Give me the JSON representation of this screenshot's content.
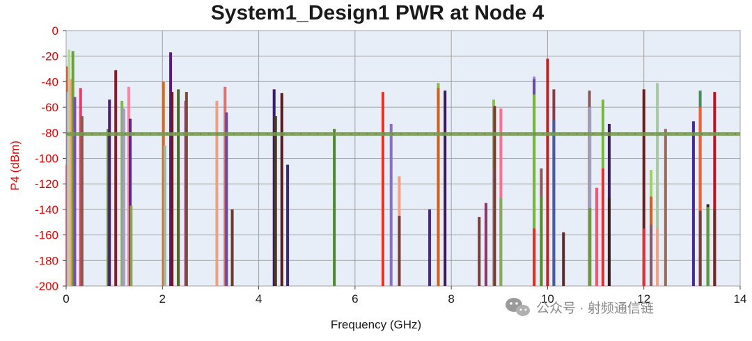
{
  "chart_data": {
    "type": "bar",
    "title": "System1_Design1 PWR at Node 4",
    "xlabel": "Frequency (GHz)",
    "ylabel": "P4 (dBm)",
    "xlim": [
      0,
      14
    ],
    "ylim": [
      -200,
      0
    ],
    "x_ticks": [
      "0",
      "2",
      "4",
      "6",
      "8",
      "10",
      "12",
      "14"
    ],
    "y_ticks": [
      "0",
      "-20",
      "-40",
      "-60",
      "-80",
      "-100",
      "-120",
      "-140",
      "-160",
      "-180",
      "-200"
    ],
    "grid": true,
    "background": "#e8eef8",
    "noise_floor": {
      "value": -81,
      "color": "#7a9a55"
    },
    "watermark": "公众号 · 射频通信链",
    "series": [
      {
        "color": "#b52020",
        "x": [
          0.02
        ],
        "y": [
          -105
        ]
      },
      {
        "color": "#ea4b22",
        "x": [
          0.03
        ],
        "y": [
          -28
        ]
      },
      {
        "color": "#bda9d8",
        "x": [
          0.04
        ],
        "y": [
          -48
        ]
      },
      {
        "color": "#b5d99a",
        "x": [
          0.06
        ],
        "y": [
          -15
        ]
      },
      {
        "color": "#f5a37a",
        "x": [
          0.1
        ],
        "y": [
          -38
        ]
      },
      {
        "color": "#6aa23a",
        "x": [
          0.14
        ],
        "y": [
          -16
        ]
      },
      {
        "color": "#7b4ea8",
        "x": [
          0.18
        ],
        "y": [
          -52
        ]
      },
      {
        "color": "#e8386a",
        "x": [
          0.3
        ],
        "y": [
          -45
        ]
      },
      {
        "color": "#8a5a48",
        "x": [
          0.33
        ],
        "y": [
          -67
        ]
      },
      {
        "color": "#5a8a2a",
        "x": [
          0.87
        ],
        "y": [
          -77
        ]
      },
      {
        "color": "#4e1e6e",
        "x": [
          0.9
        ],
        "y": [
          -54
        ]
      },
      {
        "color": "#8a1a2a",
        "x": [
          1.03
        ],
        "y": [
          -31
        ]
      },
      {
        "color": "#7ab84a",
        "x": [
          1.16
        ],
        "y": [
          -55
        ]
      },
      {
        "color": "#b09ac8",
        "x": [
          1.2
        ],
        "y": [
          -61
        ]
      },
      {
        "color": "#ff80a0",
        "x": [
          1.3
        ],
        "y": [
          -44
        ]
      },
      {
        "color": "#5a2a8a",
        "x": [
          1.33
        ],
        "y": [
          -69
        ]
      },
      {
        "color": "#88a848",
        "x": [
          1.35
        ],
        "y": [
          -137
        ]
      },
      {
        "color": "#d2691e",
        "x": [
          2.02
        ],
        "y": [
          -40
        ]
      },
      {
        "color": "#a0b8a0",
        "x": [
          2.05
        ],
        "y": [
          -90
        ]
      },
      {
        "color": "#5a1a8a",
        "x": [
          2.17
        ],
        "y": [
          -17
        ]
      },
      {
        "color": "#6a1a1a",
        "x": [
          2.2
        ],
        "y": [
          -48
        ]
      },
      {
        "color": "#e03020",
        "x": [
          2.33
        ],
        "y": [
          -133
        ]
      },
      {
        "color": "#4a6a2a",
        "x": [
          2.33
        ],
        "y": [
          -46
        ]
      },
      {
        "color": "#d040c0",
        "x": [
          2.48
        ],
        "y": [
          -55
        ]
      },
      {
        "color": "#7a4a3a",
        "x": [
          2.5
        ],
        "y": [
          -48
        ]
      },
      {
        "color": "#f0a080",
        "x": [
          3.13
        ],
        "y": [
          -55
        ]
      },
      {
        "color": "#e07070",
        "x": [
          3.3
        ],
        "y": [
          -44
        ]
      },
      {
        "color": "#8a8a2a",
        "x": [
          3.33
        ],
        "y": [
          -70
        ]
      },
      {
        "color": "#6a4a9a",
        "x": [
          3.33
        ],
        "y": [
          -64
        ]
      },
      {
        "color": "#6a3a2a",
        "x": [
          3.45
        ],
        "y": [
          -140
        ]
      },
      {
        "color": "#3a1a6a",
        "x": [
          4.32
        ],
        "y": [
          -46
        ]
      },
      {
        "color": "#4a3a1a",
        "x": [
          4.35
        ],
        "y": [
          -67
        ]
      },
      {
        "color": "#5a1a1a",
        "x": [
          4.48
        ],
        "y": [
          -49
        ]
      },
      {
        "color": "#3a2a7a",
        "x": [
          4.6
        ],
        "y": [
          -105
        ]
      },
      {
        "color": "#4a8a2a",
        "x": [
          5.57
        ],
        "y": [
          -77
        ]
      },
      {
        "color": "#ea3020",
        "x": [
          6.58
        ],
        "y": [
          -48
        ]
      },
      {
        "color": "#8a70c0",
        "x": [
          6.75
        ],
        "y": [
          -73
        ]
      },
      {
        "color": "#f5a080",
        "x": [
          6.92
        ],
        "y": [
          -114
        ]
      },
      {
        "color": "#7a3a3a",
        "x": [
          6.92
        ],
        "y": [
          -145
        ]
      },
      {
        "color": "#4a2a8a",
        "x": [
          7.55
        ],
        "y": [
          -140
        ]
      },
      {
        "color": "#8ab84a",
        "x": [
          7.73
        ],
        "y": [
          -41
        ]
      },
      {
        "color": "#d06020",
        "x": [
          7.73
        ],
        "y": [
          -45
        ]
      },
      {
        "color": "#3a1a5a",
        "x": [
          7.87
        ],
        "y": [
          -47
        ]
      },
      {
        "color": "#7a3a3a",
        "x": [
          8.58
        ],
        "y": [
          -146
        ]
      },
      {
        "color": "#4a8a3a",
        "x": [
          8.72
        ],
        "y": [
          -136
        ]
      },
      {
        "color": "#8a3a6a",
        "x": [
          8.72
        ],
        "y": [
          -135
        ]
      },
      {
        "color": "#90c050",
        "x": [
          8.88
        ],
        "y": [
          -54
        ]
      },
      {
        "color": "#b0a0c0",
        "x": [
          8.88
        ],
        "y": [
          -108
        ]
      },
      {
        "color": "#7a3a2a",
        "x": [
          8.9
        ],
        "y": [
          -59
        ]
      },
      {
        "color": "#ff7090",
        "x": [
          9.03
        ],
        "y": [
          -61
        ]
      },
      {
        "color": "#8aa85a",
        "x": [
          9.03
        ],
        "y": [
          -131
        ]
      },
      {
        "color": "#8a8ad0",
        "x": [
          9.72
        ],
        "y": [
          -36
        ]
      },
      {
        "color": "#6a4aa0",
        "x": [
          9.72
        ],
        "y": [
          -38
        ]
      },
      {
        "color": "#78b838",
        "x": [
          9.72
        ],
        "y": [
          -50
        ]
      },
      {
        "color": "#e03020",
        "x": [
          9.72
        ],
        "y": [
          -155
        ]
      },
      {
        "color": "#8a5a5a",
        "x": [
          9.87
        ],
        "y": [
          -108
        ]
      },
      {
        "color": "#5a8a2a",
        "x": [
          9.87
        ],
        "y": [
          -130
        ]
      },
      {
        "color": "#c02020",
        "x": [
          10.0
        ],
        "y": [
          -22
        ]
      },
      {
        "color": "#8a3a4a",
        "x": [
          10.13
        ],
        "y": [
          -46
        ]
      },
      {
        "color": "#4a5aa0",
        "x": [
          10.13
        ],
        "y": [
          -70
        ]
      },
      {
        "color": "#5a2a2a",
        "x": [
          10.33
        ],
        "y": [
          -158
        ]
      },
      {
        "color": "#8a5a5a",
        "x": [
          10.87
        ],
        "y": [
          -47
        ]
      },
      {
        "color": "#a0a0c0",
        "x": [
          10.88
        ],
        "y": [
          -60
        ]
      },
      {
        "color": "#6a9a3a",
        "x": [
          10.88
        ],
        "y": [
          -139
        ]
      },
      {
        "color": "#ff5070",
        "x": [
          11.02
        ],
        "y": [
          -123
        ]
      },
      {
        "color": "#8a5aa0",
        "x": [
          11.15
        ],
        "y": [
          -141
        ]
      },
      {
        "color": "#78b838",
        "x": [
          11.15
        ],
        "y": [
          -54
        ]
      },
      {
        "color": "#e03030",
        "x": [
          11.15
        ],
        "y": [
          -108
        ]
      },
      {
        "color": "#3a1a5a",
        "x": [
          11.28
        ],
        "y": [
          -73
        ]
      },
      {
        "color": "#3a1a1a",
        "x": [
          11.28
        ],
        "y": [
          -131
        ]
      },
      {
        "color": "#6a1a1a",
        "x": [
          12.0
        ],
        "y": [
          -46
        ]
      },
      {
        "color": "#e03030",
        "x": [
          12.0
        ],
        "y": [
          -155
        ]
      },
      {
        "color": "#a0d060",
        "x": [
          12.15
        ],
        "y": [
          -109
        ]
      },
      {
        "color": "#d06020",
        "x": [
          12.15
        ],
        "y": [
          -130
        ]
      },
      {
        "color": "#8a5a6a",
        "x": [
          12.15
        ],
        "y": [
          -152
        ]
      },
      {
        "color": "#a8c8a0",
        "x": [
          12.28
        ],
        "y": [
          -41
        ]
      },
      {
        "color": "#f5a080",
        "x": [
          12.28
        ],
        "y": [
          -155
        ]
      },
      {
        "color": "#9a6a5a",
        "x": [
          12.45
        ],
        "y": [
          -77
        ]
      },
      {
        "color": "#4a2a9a",
        "x": [
          13.03
        ],
        "y": [
          -71
        ]
      },
      {
        "color": "#4a8a5a",
        "x": [
          13.17
        ],
        "y": [
          -47
        ]
      },
      {
        "color": "#f06030",
        "x": [
          13.17
        ],
        "y": [
          -60
        ]
      },
      {
        "color": "#7a3a3a",
        "x": [
          13.17
        ],
        "y": [
          -141
        ]
      },
      {
        "color": "#3a1a1a",
        "x": [
          13.33
        ],
        "y": [
          -136
        ]
      },
      {
        "color": "#5a9a3a",
        "x": [
          13.33
        ],
        "y": [
          -138
        ]
      },
      {
        "color": "#c01020",
        "x": [
          13.47
        ],
        "y": [
          -48
        ]
      },
      {
        "color": "#6a2a2a",
        "x": [
          13.47
        ],
        "y": [
          -140
        ]
      }
    ]
  }
}
